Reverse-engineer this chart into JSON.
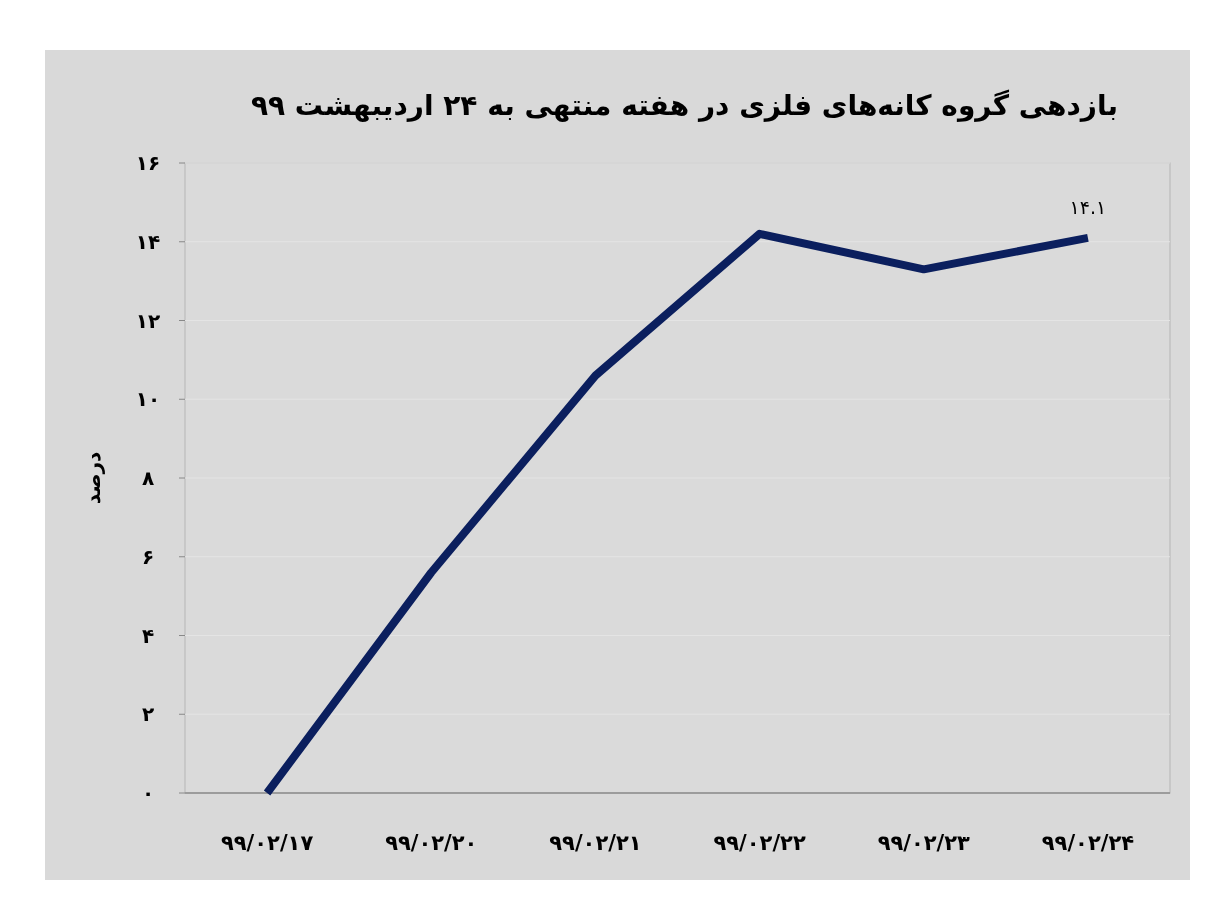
{
  "chart_data": {
    "type": "line",
    "title": "بازدهی گروه کانه‌های فلزی در هفته منتهی به ۲۴ اردیبهشت ۹۹",
    "ylabel": "درصد",
    "categories": [
      "۹۹/۰۲/۱۷",
      "۹۹/۰۲/۲۰",
      "۹۹/۰۲/۲۱",
      "۹۹/۰۲/۲۲",
      "۹۹/۰۲/۲۳",
      "۹۹/۰۲/۲۴"
    ],
    "series": [
      {
        "color": "#0b1f5e",
        "values": [
          0,
          5.6,
          10.6,
          14.2,
          13.3,
          14.1
        ],
        "value_labels": [
          null,
          null,
          null,
          null,
          null,
          "۱۴.۱"
        ]
      }
    ],
    "ylim": [
      0,
      16
    ],
    "yticks": [
      {
        "value": 0,
        "label": "۰"
      },
      {
        "value": 2,
        "label": "۲"
      },
      {
        "value": 4,
        "label": "۴"
      },
      {
        "value": 6,
        "label": "۶"
      },
      {
        "value": 8,
        "label": "۸"
      },
      {
        "value": 10,
        "label": "۱۰"
      },
      {
        "value": 12,
        "label": "۱۲"
      },
      {
        "value": 14,
        "label": "۱۴"
      },
      {
        "value": 16,
        "label": "۱۶"
      }
    ],
    "grid": "y",
    "marker": "none",
    "line_style": "solid"
  }
}
